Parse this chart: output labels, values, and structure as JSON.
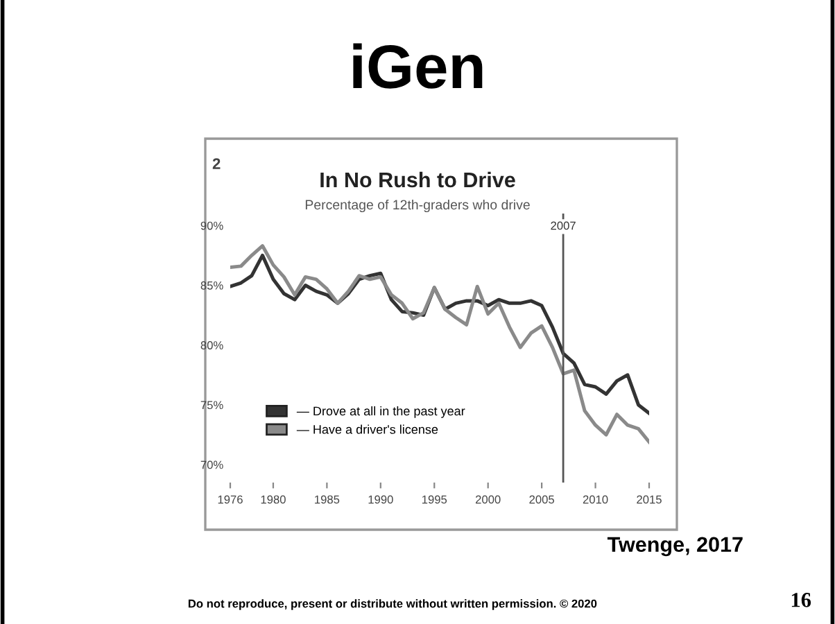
{
  "chart_data": {
    "type": "line",
    "title": "In No Rush to Drive",
    "subtitle": "Percentage of 12th-graders who drive",
    "x": [
      1976,
      1977,
      1978,
      1979,
      1980,
      1981,
      1982,
      1983,
      1984,
      1985,
      1986,
      1987,
      1988,
      1989,
      1990,
      1991,
      1992,
      1993,
      1994,
      1995,
      1996,
      1997,
      1998,
      1999,
      2000,
      2001,
      2002,
      2003,
      2004,
      2005,
      2006,
      2007,
      2008,
      2009,
      2010,
      2011,
      2012,
      2013,
      2014,
      2015
    ],
    "series": [
      {
        "name": "— Drove at all in the past year",
        "color": "#333333",
        "values": [
          84.9,
          85.2,
          85.8,
          87.5,
          85.5,
          84.3,
          83.8,
          85,
          84.5,
          84.2,
          83.5,
          84.3,
          85.5,
          85.8,
          86,
          83.8,
          82.8,
          82.7,
          82.5,
          84.8,
          83,
          83.5,
          83.7,
          83.7,
          83.3,
          83.8,
          83.5,
          83.5,
          83.7,
          83.3,
          81.5,
          79.3,
          78.5,
          76.7,
          76.5,
          75.9,
          77,
          77.5,
          75,
          74.3
        ]
      },
      {
        "name": "— Have a driver's license",
        "color": "#8a8a8a",
        "values": [
          86.5,
          86.6,
          87.5,
          88.3,
          86.7,
          85.7,
          84.2,
          85.7,
          85.5,
          84.7,
          83.5,
          84.5,
          85.8,
          85.5,
          85.7,
          84.2,
          83.5,
          82.2,
          82.7,
          84.8,
          83,
          82.3,
          81.7,
          84.9,
          82.6,
          83.5,
          81.5,
          79.8,
          81,
          81.6,
          79.8,
          77.6,
          77.9,
          74.5,
          73.3,
          72.5,
          74.2,
          73.3,
          73,
          71.9
        ]
      }
    ],
    "xlim": [
      1976,
      2015
    ],
    "xticks": [
      1976,
      1980,
      1985,
      1990,
      1995,
      2000,
      2005,
      2010,
      2015
    ],
    "ylim": [
      68.5,
      91
    ],
    "yticks": [
      {
        "value": 70,
        "label": "70%"
      },
      {
        "value": 75,
        "label": "75%"
      },
      {
        "value": 80,
        "label": "80%"
      },
      {
        "value": 85,
        "label": "85%"
      },
      {
        "value": 90,
        "label": "90%"
      }
    ],
    "ref_lines": [
      {
        "axis": "x",
        "value": 2007,
        "label": "2007",
        "color": "#555555"
      }
    ],
    "legend": "bottom left",
    "grid": false,
    "marker": "none",
    "line_style": "solid",
    "annotations": [
      "iGen",
      "2",
      "Twenge, 2017",
      "Do not reproduce, present or distribute without written permission. © 2020",
      "16"
    ]
  }
}
